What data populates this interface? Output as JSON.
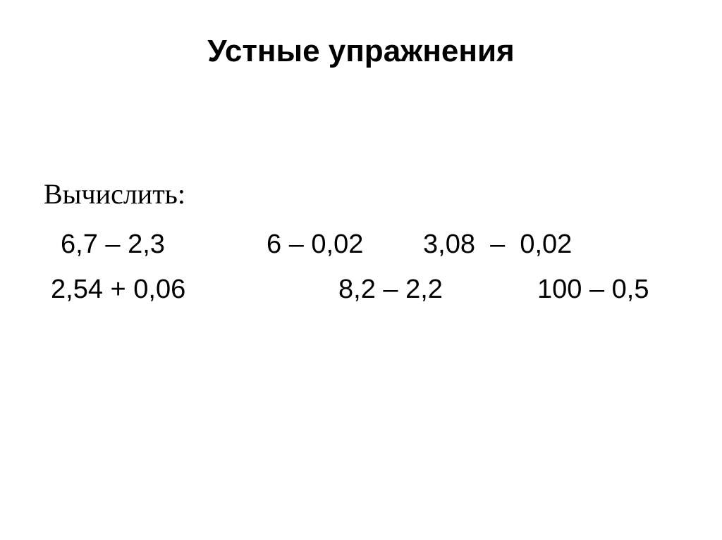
{
  "slide": {
    "title": "Устные упражнения",
    "label": "Вычислить:",
    "rows": [
      [
        "6,7 – 2,3",
        "6 – 0,02",
        "3,08  –  0,02"
      ],
      [
        "2,54 + 0,06",
        "8,2 – 2,2",
        "100 – 0,5"
      ]
    ]
  }
}
